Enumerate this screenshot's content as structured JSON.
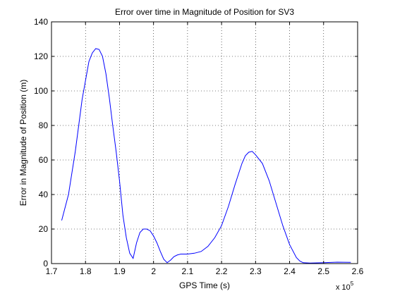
{
  "chart_data": {
    "type": "line",
    "title": "Error over time in Magnitude of Position for SV3",
    "xlabel": "GPS Time (s)",
    "ylabel": "Error in Magnitude of Position (m)",
    "x_exponent_label": "x 10",
    "x_exponent_power": "5",
    "x_scale_factor": 100000,
    "xlim": [
      1.7,
      2.6
    ],
    "ylim": [
      0,
      140
    ],
    "xticks": [
      1.7,
      1.8,
      1.9,
      2.0,
      2.1,
      2.2,
      2.3,
      2.4,
      2.5,
      2.6
    ],
    "xtick_labels": [
      "1.7",
      "1.8",
      "1.9",
      "2",
      "2.1",
      "2.2",
      "2.3",
      "2.4",
      "2.5",
      "2.6"
    ],
    "yticks": [
      0,
      20,
      40,
      60,
      80,
      100,
      120,
      140
    ],
    "ytick_labels": [
      "0",
      "20",
      "40",
      "60",
      "80",
      "100",
      "120",
      "140"
    ],
    "grid": true,
    "grid_style": "dotted",
    "line_color": "#0000ff",
    "series": [
      {
        "x": [
          1.73,
          1.75,
          1.77,
          1.79,
          1.81,
          1.82,
          1.83,
          1.84,
          1.85,
          1.86,
          1.87,
          1.88,
          1.89,
          1.9,
          1.91,
          1.92,
          1.93,
          1.94,
          1.95,
          1.96,
          1.97,
          1.98,
          1.99,
          2.0,
          2.01,
          2.02,
          2.03,
          2.04,
          2.05,
          2.06,
          2.07,
          2.08,
          2.09,
          2.1,
          2.12,
          2.14,
          2.16,
          2.18,
          2.2,
          2.22,
          2.24,
          2.26,
          2.27,
          2.28,
          2.29,
          2.3,
          2.32,
          2.34,
          2.36,
          2.38,
          2.4,
          2.42,
          2.43,
          2.44,
          2.46,
          2.5,
          2.54,
          2.58
        ],
        "y": [
          25,
          40,
          65,
          95,
          117,
          122,
          124.5,
          124,
          120,
          110,
          96,
          80,
          65,
          48,
          28,
          15,
          6,
          3,
          12,
          18,
          20,
          20,
          19,
          16,
          12,
          7,
          2.5,
          0.5,
          2,
          4,
          5,
          5.5,
          5.5,
          5.5,
          6,
          7,
          10,
          15,
          22,
          33,
          46,
          58,
          62.5,
          64.5,
          65,
          63,
          58,
          48,
          35,
          22,
          11,
          3.5,
          1.5,
          0.5,
          0.3,
          0.5,
          0.8,
          0.7
        ]
      }
    ]
  }
}
